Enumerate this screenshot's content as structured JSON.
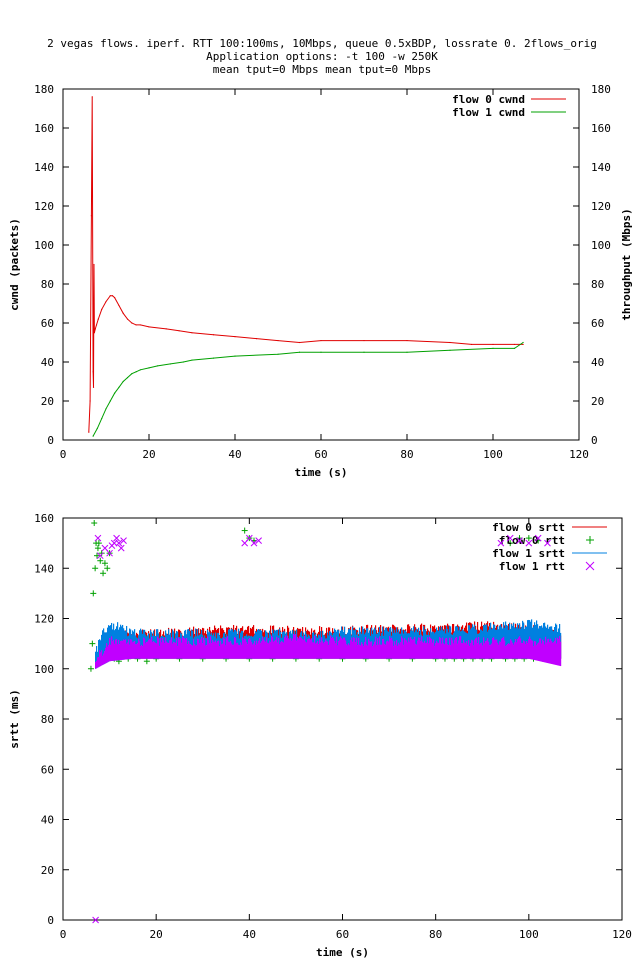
{
  "chart_data": [
    {
      "type": "line",
      "title_lines": [
        "2 vegas flows. iperf. RTT 100:100ms, 10Mbps, queue 0.5xBDP, lossrate 0. 2flows_orig",
        "Application options: -t 100 -w 250K",
        "mean tput=0 Mbps mean tput=0 Mbps"
      ],
      "xlabel": "time (s)",
      "ylabel": "cwnd (packets)",
      "y2label": "throughput (Mbps)",
      "xlim": [
        0,
        120
      ],
      "ylim": [
        0,
        180
      ],
      "y2lim": [
        0,
        180
      ],
      "xticks": [
        0,
        20,
        40,
        60,
        80,
        100,
        120
      ],
      "yticks": [
        0,
        20,
        40,
        60,
        80,
        100,
        120,
        140,
        160,
        180
      ],
      "y2ticks": [
        0,
        20,
        40,
        60,
        80,
        100,
        120,
        140,
        160,
        180
      ],
      "grid": false,
      "legend_position": "top-right",
      "series": [
        {
          "name": "flow 0 cwnd",
          "color": "#e00000",
          "x": [
            6.0,
            6.3,
            6.6,
            6.8,
            7.0,
            7.1,
            7.2,
            7.3,
            7.5,
            7.8,
            8.2,
            9.0,
            10.0,
            11.0,
            11.5,
            12.0,
            13.0,
            14.0,
            15.0,
            16.0,
            17.0,
            18.0,
            20.0,
            24.0,
            27.0,
            30.0,
            35.0,
            40.0,
            45.0,
            50.0,
            55.0,
            60.0,
            70.0,
            80.0,
            90.0,
            95.0,
            100.0,
            105.0,
            107.0
          ],
          "y": [
            4,
            20,
            115,
            176,
            35,
            27,
            90,
            55,
            57,
            59,
            62,
            67,
            71,
            74,
            74,
            73,
            69,
            65,
            62,
            60,
            59,
            59,
            58,
            57,
            56,
            55,
            54,
            53,
            52,
            51,
            50,
            51,
            51,
            51,
            50,
            49,
            49,
            49,
            49
          ]
        },
        {
          "name": "flow 1 cwnd",
          "color": "#00a000",
          "x": [
            7.0,
            8.0,
            9.0,
            10.0,
            11.0,
            12.0,
            13.0,
            14.0,
            15.0,
            16.0,
            17.0,
            18.0,
            20.0,
            22.0,
            25.0,
            28.0,
            30.0,
            35.0,
            40.0,
            50.0,
            55.0,
            60.0,
            70.0,
            80.0,
            90.0,
            100.0,
            105.0,
            107.0
          ],
          "y": [
            2,
            6,
            11,
            16,
            20,
            24,
            27,
            30,
            32,
            34,
            35,
            36,
            37,
            38,
            39,
            40,
            41,
            42,
            43,
            44,
            45,
            45,
            45,
            45,
            46,
            47,
            47,
            50
          ]
        }
      ]
    },
    {
      "type": "scatter",
      "xlabel": "time (s)",
      "ylabel": "srtt (ms)",
      "xlim": [
        0,
        120
      ],
      "ylim": [
        0,
        160
      ],
      "xticks": [
        0,
        20,
        40,
        60,
        80,
        100,
        120
      ],
      "yticks": [
        0,
        20,
        40,
        60,
        80,
        100,
        120,
        140,
        160
      ],
      "grid": false,
      "legend_position": "top-right",
      "series": [
        {
          "name": "flow 0 srtt",
          "color": "#e00000",
          "style": "band",
          "x": [
            10,
            20,
            30,
            40,
            50,
            60,
            70,
            80,
            90,
            100,
            107
          ],
          "y_low": [
            104,
            104,
            104,
            104,
            104,
            104,
            104,
            104,
            104,
            104,
            104
          ],
          "y_high": [
            115,
            116,
            117,
            118,
            117,
            117,
            118,
            118,
            119,
            118,
            116
          ]
        },
        {
          "name": "flow 0 rtt",
          "color": "#00a000",
          "style": "points",
          "marker": "+",
          "x": [
            6.0,
            6.3,
            6.5,
            6.7,
            6.9,
            7.1,
            7.3,
            7.5,
            7.7,
            8.0,
            8.3,
            8.6,
            9.0,
            9.5,
            10.0,
            11.0,
            12.0,
            14.0,
            16.0,
            18.0,
            20.0,
            25.0,
            30.0,
            35.0,
            40.0,
            45.0,
            50.0,
            55.0,
            60.0,
            65.0,
            70.0,
            75.0,
            80.0,
            82.0,
            84.0,
            86.0,
            88.0,
            90.0,
            92.0,
            95.0,
            97.0,
            99.0,
            101.0,
            103.0,
            105.0,
            39.0,
            40.0,
            41.0,
            96.0,
            98.0,
            100.0,
            102.0
          ],
          "y": [
            100,
            110,
            130,
            158,
            140,
            150,
            145,
            148,
            150,
            143,
            146,
            138,
            142,
            140,
            146,
            104,
            103,
            104,
            104,
            103,
            104,
            104,
            104,
            104,
            104,
            104,
            104,
            104,
            104,
            104,
            104,
            104,
            104,
            104,
            104,
            104,
            104,
            104,
            104,
            104,
            104,
            104,
            104,
            104,
            104,
            155,
            152,
            151,
            150,
            152,
            152,
            151
          ]
        },
        {
          "name": "flow 1 srtt",
          "color": "#0080e0",
          "style": "band",
          "x": [
            7,
            8,
            9,
            10,
            15,
            20,
            30,
            40,
            50,
            55,
            60,
            70,
            80,
            90,
            100,
            107
          ],
          "y_low": [
            100,
            101,
            102,
            103,
            104,
            104,
            104,
            104,
            104,
            104,
            104,
            104,
            104,
            104,
            104,
            104
          ],
          "y_high": [
            108,
            114,
            117,
            120,
            116,
            116,
            116,
            116,
            116,
            115,
            117,
            117,
            117,
            118,
            120,
            118
          ]
        },
        {
          "name": "flow 1 rtt",
          "color": "#c000ff",
          "style": "band",
          "x": [
            7,
            8,
            9,
            10,
            15,
            20,
            30,
            40,
            50,
            60,
            70,
            80,
            90,
            100,
            107
          ],
          "y_low": [
            100,
            101,
            102,
            103,
            104,
            104,
            104,
            104,
            104,
            104,
            104,
            104,
            104,
            104,
            101
          ],
          "y_high": [
            104,
            108,
            110,
            113,
            113,
            113,
            113,
            113,
            114,
            113,
            113,
            113,
            113,
            113,
            113
          ]
        },
        {
          "name": "flow 1 rtt points",
          "color": "#c000ff",
          "style": "points",
          "marker": "x",
          "legend": false,
          "x": [
            7.5,
            8.0,
            9.0,
            10.0,
            11.0,
            11.5,
            12.0,
            12.5,
            13.0,
            10.5,
            39.0,
            40.0,
            41.0,
            42.0,
            94.0,
            96.0,
            98.0,
            100.0,
            102.0,
            104.0,
            7.0
          ],
          "y": [
            152,
            145,
            148,
            146,
            150,
            152,
            150,
            148,
            151,
            149,
            150,
            152,
            150,
            151,
            150,
            152,
            151,
            150,
            152,
            150,
            0
          ]
        }
      ]
    }
  ]
}
